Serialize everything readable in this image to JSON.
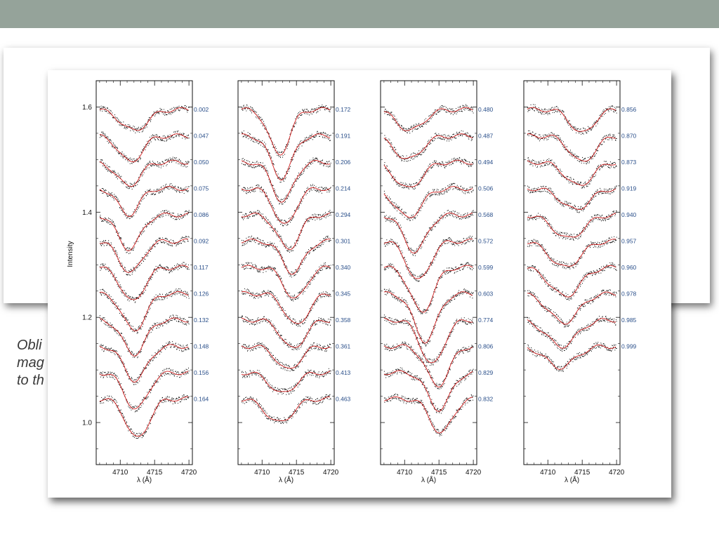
{
  "slide": {
    "band_color": "#95a39a",
    "caption_lines": [
      "Obli",
      "mag",
      "to th"
    ]
  },
  "chart_data": {
    "type": "line",
    "ylabel": "Intensity",
    "xlabel": "λ (Å)",
    "xlim": [
      4706.5,
      4720.5
    ],
    "ylim": [
      0.92,
      1.65
    ],
    "x_ticks": [
      4710,
      4715,
      4720
    ],
    "y_ticks": [
      1.0,
      1.2,
      1.4,
      1.6
    ],
    "observed_color": "#000000",
    "model_color": "#d42020",
    "panels": [
      {
        "phases": [
          "0.002",
          "0.047",
          "0.050",
          "0.075",
          "0.086",
          "0.092",
          "0.117",
          "0.126",
          "0.132",
          "0.148",
          "0.156",
          "0.164"
        ],
        "centers": [
          4712.0,
          4711.5,
          4711.2,
          4711.2,
          4711.3,
          4711.5,
          4711.8,
          4712.0,
          4712.0,
          4712.2,
          4712.3,
          4712.5
        ],
        "depths": [
          0.04,
          0.05,
          0.045,
          0.05,
          0.065,
          0.06,
          0.065,
          0.07,
          0.065,
          0.065,
          0.07,
          0.075
        ],
        "widths": [
          3.0,
          2.6,
          2.6,
          2.4,
          2.6,
          2.6,
          2.6,
          2.6,
          2.6,
          2.6,
          2.6,
          2.6
        ]
      },
      {
        "phases": [
          "0.172",
          "0.191",
          "0.206",
          "0.214",
          "0.294",
          "0.301",
          "0.340",
          "0.345",
          "0.358",
          "0.361",
          "0.413",
          "0.463"
        ],
        "centers": [
          4712.5,
          4712.8,
          4713.0,
          4713.3,
          4713.8,
          4714.5,
          4714.8,
          4715.0,
          4714.5,
          4713.8,
          4713.0,
          4712.5
        ],
        "depths": [
          0.085,
          0.08,
          0.075,
          0.07,
          0.065,
          0.06,
          0.06,
          0.06,
          0.055,
          0.045,
          0.04,
          0.045
        ],
        "widths": [
          2.4,
          2.4,
          2.4,
          2.4,
          2.5,
          2.5,
          2.5,
          2.6,
          2.6,
          2.6,
          2.8,
          3.0
        ]
      },
      {
        "phases": [
          "0.480",
          "0.487",
          "0.494",
          "0.506",
          "0.568",
          "0.572",
          "0.599",
          "0.603",
          "0.774",
          "0.806",
          "0.829",
          "0.832"
        ],
        "centers": [
          4710.8,
          4710.5,
          4710.5,
          4710.5,
          4711.5,
          4712.0,
          4712.5,
          4713.0,
          4714.0,
          4714.8,
          4715.0,
          4715.3
        ],
        "depths": [
          0.04,
          0.045,
          0.05,
          0.055,
          0.07,
          0.075,
          0.085,
          0.09,
          0.085,
          0.075,
          0.07,
          0.065
        ],
        "widths": [
          3.0,
          3.0,
          3.0,
          3.0,
          2.6,
          2.6,
          2.6,
          2.6,
          2.6,
          2.6,
          2.6,
          2.5
        ]
      },
      {
        "phases": [
          "0.856",
          "0.870",
          "0.873",
          "0.919",
          "0.940",
          "0.957",
          "0.960",
          "0.978",
          "0.985",
          "0.999"
        ],
        "centers": [
          4715.0,
          4715.0,
          4714.5,
          4714.0,
          4713.0,
          4712.5,
          4712.5,
          4712.3,
          4712.0,
          4711.8
        ],
        "depths": [
          0.045,
          0.05,
          0.045,
          0.04,
          0.045,
          0.05,
          0.055,
          0.055,
          0.05,
          0.04
        ],
        "widths": [
          2.6,
          2.8,
          3.0,
          3.2,
          3.4,
          3.4,
          3.4,
          3.4,
          3.4,
          3.4
        ]
      }
    ]
  }
}
